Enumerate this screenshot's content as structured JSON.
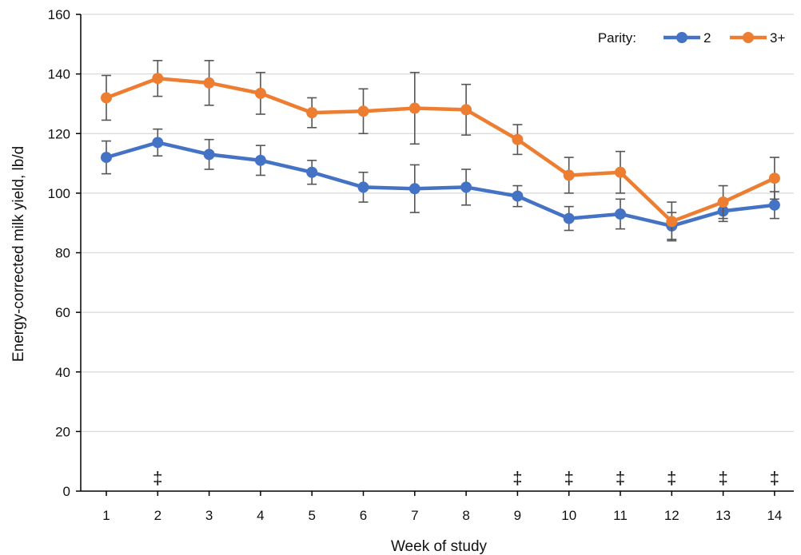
{
  "chart_data": {
    "type": "line",
    "title": "",
    "xlabel": "Week of study",
    "ylabel": "Energy-corrected milk yield, lb/d",
    "ylim": [
      0,
      160
    ],
    "y_ticks": [
      "0",
      "20",
      "40",
      "60",
      "80",
      "100",
      "120",
      "140",
      "160"
    ],
    "categories": [
      "1",
      "2",
      "3",
      "4",
      "5",
      "6",
      "7",
      "8",
      "9",
      "10",
      "11",
      "12",
      "13",
      "14"
    ],
    "grid": "horizontal",
    "legend": {
      "title": "Parity:",
      "placement": "top-right"
    },
    "series": [
      {
        "name": "2",
        "color": "#4472C4",
        "values": [
          112,
          117,
          113,
          111,
          107,
          102,
          101.5,
          102,
          99,
          91.5,
          93,
          89,
          94,
          96
        ],
        "error": [
          5.5,
          4.5,
          5,
          5,
          4,
          5,
          8,
          6,
          3.5,
          4,
          5,
          4.5,
          3.5,
          4.5
        ]
      },
      {
        "name": "3+",
        "color": "#ED7D31",
        "values": [
          132,
          138.5,
          137,
          133.5,
          127,
          127.5,
          128.5,
          128,
          118,
          106,
          107,
          90.5,
          97,
          105
        ],
        "error": [
          7.5,
          6,
          7.5,
          7,
          5,
          7.5,
          12,
          8.5,
          5,
          6,
          7,
          6.5,
          5.5,
          7
        ]
      }
    ],
    "significance_markers": {
      "symbol": "‡",
      "weeks": [
        "2",
        "9",
        "10",
        "11",
        "12",
        "13",
        "14"
      ]
    }
  }
}
